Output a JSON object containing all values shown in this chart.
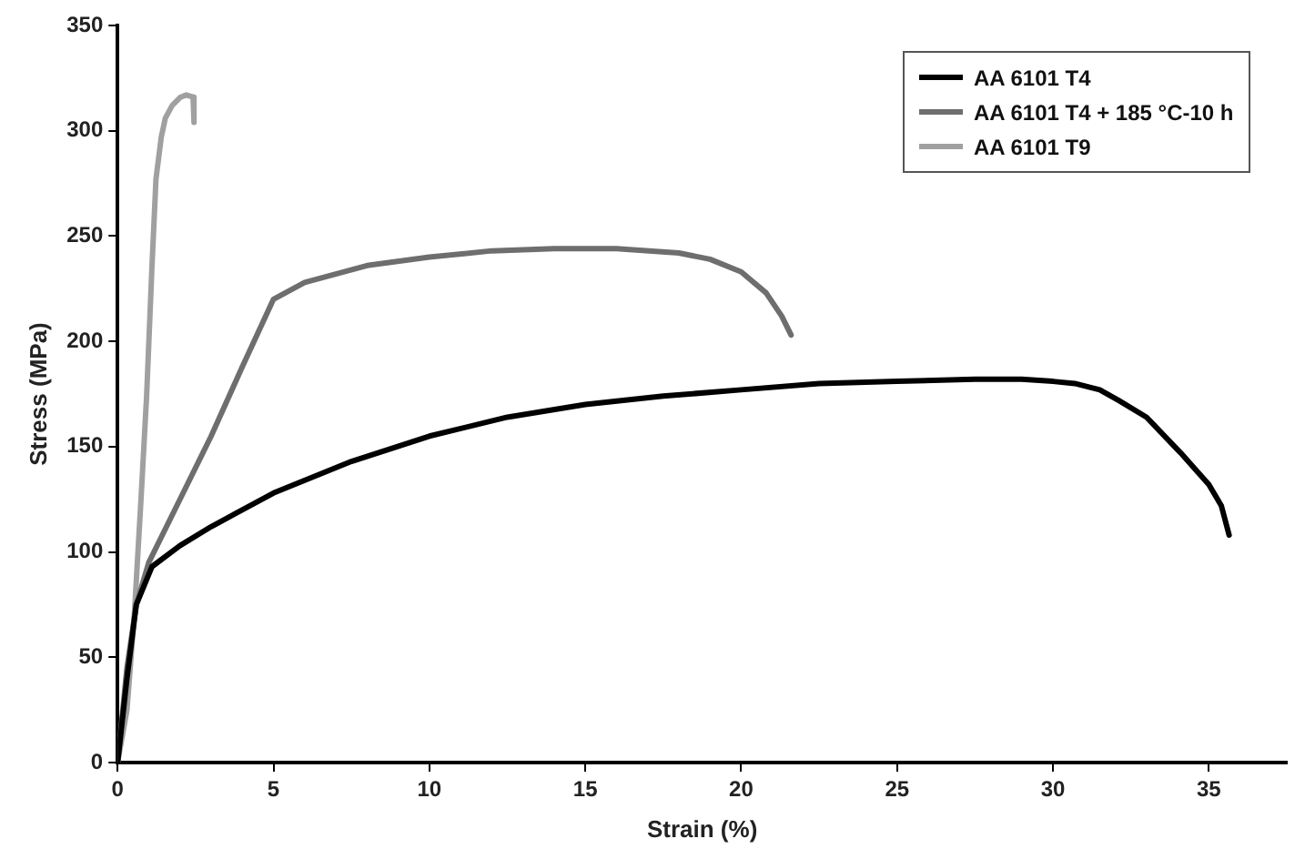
{
  "chart_data": {
    "type": "line",
    "xlabel": "Strain (%)",
    "ylabel": "Stress (MPa)",
    "xlim": [
      0,
      37.5
    ],
    "xticks": [
      0,
      5,
      10,
      15,
      20,
      25,
      30,
      35
    ],
    "ylim": [
      0,
      350
    ],
    "yticks": [
      0,
      50,
      100,
      150,
      200,
      250,
      300,
      350
    ],
    "grid": false,
    "legend": "top right",
    "marker": "none",
    "line_style": "solid",
    "series": [
      {
        "name": "AA 6101 T4",
        "color": "#000000",
        "x": [
          0,
          0.3,
          0.6,
          1.1,
          2,
          3,
          5,
          7.5,
          10,
          12.5,
          15,
          17.5,
          20,
          22.5,
          25,
          27.5,
          29,
          30,
          30.7,
          31.5,
          32.1,
          33,
          34.1,
          35,
          35.4,
          35.65
        ],
        "values": [
          0,
          40,
          75,
          93,
          103,
          112,
          128,
          143,
          155,
          164,
          170,
          174,
          177,
          180,
          181,
          182,
          182,
          181,
          180,
          177,
          172,
          164,
          147,
          132,
          122,
          108
        ]
      },
      {
        "name": "AA 6101 T4 + 185 °C-10 h",
        "color": "#6e6e6e",
        "x": [
          0,
          0.3,
          0.6,
          1,
          2,
          3,
          4,
          5,
          6,
          8,
          10,
          12,
          14,
          16,
          18,
          19,
          20,
          20.8,
          21.3,
          21.6
        ],
        "values": [
          0,
          45,
          75,
          95,
          125,
          155,
          188,
          220,
          228,
          236,
          240,
          243,
          244,
          244,
          242,
          239,
          233,
          223,
          212,
          203
        ]
      },
      {
        "name": "AA 6101 T9",
        "color": "#a0a0a0",
        "x": [
          0,
          0.3,
          0.54,
          0.75,
          0.93,
          1.1,
          1.23,
          1.4,
          1.53,
          1.75,
          2.02,
          2.2,
          2.42,
          2.45
        ],
        "values": [
          0,
          25,
          71,
          125,
          174,
          235,
          277,
          297,
          306,
          312,
          316,
          317,
          316,
          304
        ]
      }
    ]
  }
}
